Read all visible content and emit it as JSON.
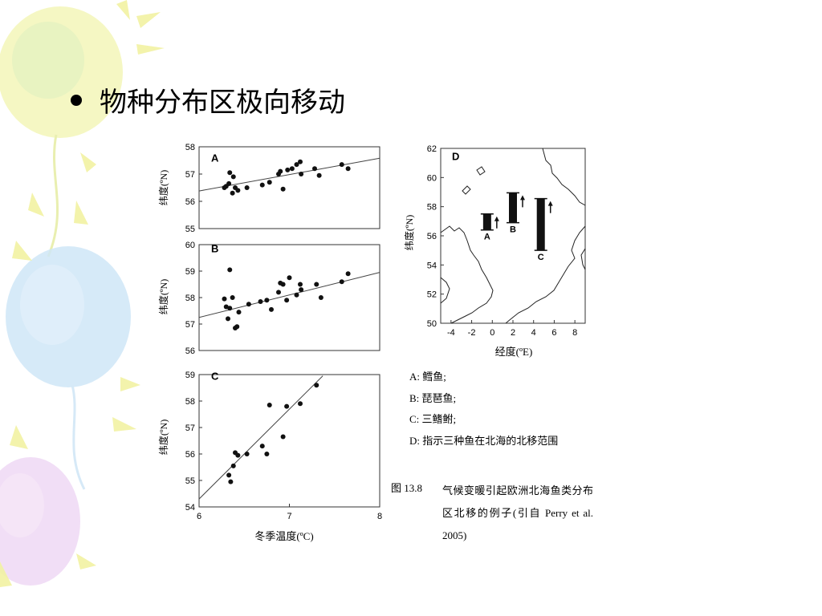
{
  "slide": {
    "title": "物种分布区极向移动"
  },
  "panels": {
    "A": {
      "letter": "A",
      "ylabel": "纬度(ºN)",
      "yticks": [
        "58",
        "57",
        "56",
        "55"
      ]
    },
    "B": {
      "letter": "B",
      "ylabel": "纬度(ºN)",
      "yticks": [
        "60",
        "59",
        "58",
        "57",
        "56"
      ]
    },
    "C": {
      "letter": "C",
      "ylabel": "纬度(ºN)",
      "yticks": [
        "59",
        "58",
        "57",
        "56",
        "55",
        "54"
      ],
      "xticks": [
        "6",
        "7",
        "8"
      ],
      "xlabel": "冬季温度(ºC)"
    },
    "D": {
      "letter": "D",
      "ylabel": "纬度(ºN)",
      "xlabel": "经度(ºE)",
      "yticks": [
        "62",
        "60",
        "58",
        "56",
        "54",
        "52",
        "50"
      ],
      "xticks": [
        "-4",
        "-2",
        "0",
        "2",
        "4",
        "6",
        "8"
      ],
      "bars": [
        "A",
        "B",
        "C"
      ]
    }
  },
  "legend": {
    "a": "A:  鳕鱼;",
    "b": "B:  琵琶鱼;",
    "c": "C:  三鳍鲋;",
    "d": "D:  指示三种鱼在北海的北移范围"
  },
  "caption": {
    "number": "图 13.8",
    "text": "气候变暖引起欧洲北海鱼类分布区北移的例子(引自 Perry et al. 2005)"
  },
  "chart_data": [
    {
      "type": "scatter",
      "panel": "A",
      "ylabel": "纬度(ºN)",
      "ylim": [
        55,
        58
      ],
      "xlim": [
        6,
        8
      ],
      "points": [
        [
          6.28,
          56.5
        ],
        [
          6.3,
          56.55
        ],
        [
          6.33,
          56.65
        ],
        [
          6.34,
          57.05
        ],
        [
          6.37,
          56.3
        ],
        [
          6.38,
          56.9
        ],
        [
          6.4,
          56.5
        ],
        [
          6.43,
          56.4
        ],
        [
          6.53,
          56.5
        ],
        [
          6.7,
          56.6
        ],
        [
          6.78,
          56.7
        ],
        [
          6.88,
          57.0
        ],
        [
          6.9,
          57.1
        ],
        [
          6.93,
          56.45
        ],
        [
          6.98,
          57.15
        ],
        [
          7.03,
          57.2
        ],
        [
          7.08,
          57.35
        ],
        [
          7.12,
          57.45
        ],
        [
          7.13,
          57.0
        ],
        [
          7.28,
          57.2
        ],
        [
          7.33,
          56.95
        ],
        [
          7.58,
          57.35
        ],
        [
          7.65,
          57.2
        ]
      ],
      "trend": [
        [
          6.0,
          56.38
        ],
        [
          8.0,
          57.58
        ]
      ]
    },
    {
      "type": "scatter",
      "panel": "B",
      "ylabel": "纬度(ºN)",
      "ylim": [
        56,
        60
      ],
      "xlim": [
        6,
        8
      ],
      "points": [
        [
          6.28,
          57.95
        ],
        [
          6.3,
          57.65
        ],
        [
          6.32,
          57.2
        ],
        [
          6.34,
          59.05
        ],
        [
          6.34,
          57.6
        ],
        [
          6.37,
          58.0
        ],
        [
          6.4,
          56.85
        ],
        [
          6.42,
          56.9
        ],
        [
          6.44,
          57.45
        ],
        [
          6.55,
          57.75
        ],
        [
          6.68,
          57.85
        ],
        [
          6.75,
          57.9
        ],
        [
          6.8,
          57.55
        ],
        [
          6.88,
          58.2
        ],
        [
          6.9,
          58.55
        ],
        [
          6.93,
          58.5
        ],
        [
          6.97,
          57.9
        ],
        [
          7.0,
          58.75
        ],
        [
          7.08,
          58.1
        ],
        [
          7.12,
          58.5
        ],
        [
          7.13,
          58.3
        ],
        [
          7.3,
          58.5
        ],
        [
          7.35,
          58.0
        ],
        [
          7.58,
          58.6
        ],
        [
          7.65,
          58.9
        ]
      ],
      "trend": [
        [
          6.0,
          57.25
        ],
        [
          8.0,
          58.95
        ]
      ]
    },
    {
      "type": "scatter",
      "panel": "C",
      "ylabel": "纬度(ºN)",
      "xlabel": "冬季温度(ºC)",
      "ylim": [
        54,
        59
      ],
      "xlim": [
        6,
        8
      ],
      "points": [
        [
          6.33,
          55.2
        ],
        [
          6.35,
          54.95
        ],
        [
          6.38,
          55.55
        ],
        [
          6.4,
          56.05
        ],
        [
          6.43,
          55.95
        ],
        [
          6.53,
          56.0
        ],
        [
          6.7,
          56.3
        ],
        [
          6.75,
          56.0
        ],
        [
          6.78,
          57.85
        ],
        [
          6.93,
          56.65
        ],
        [
          6.97,
          57.8
        ],
        [
          7.12,
          57.9
        ],
        [
          7.3,
          58.6
        ]
      ],
      "trend": [
        [
          6.0,
          54.3
        ],
        [
          7.37,
          58.95
        ]
      ]
    },
    {
      "type": "bar",
      "panel": "D",
      "ylabel": "纬度(ºN)",
      "xlabel": "经度(ºE)",
      "xlim": [
        -5,
        9
      ],
      "ylim": [
        50,
        62
      ],
      "categories": [
        "A",
        "B",
        "C"
      ],
      "ranges": [
        {
          "label": "A",
          "x": -0.5,
          "y0": 56.4,
          "y1": 57.5
        },
        {
          "label": "B",
          "x": 2.0,
          "y0": 56.9,
          "y1": 58.95
        },
        {
          "label": "C",
          "x": 4.7,
          "y0": 55.0,
          "y1": 58.55
        }
      ]
    }
  ],
  "colors": {
    "accent_yellow": "#f6f3a6",
    "accent_green": "#d9f0b4",
    "accent_blue": "#c9e3f7",
    "accent_purple": "#ecd3f2"
  }
}
